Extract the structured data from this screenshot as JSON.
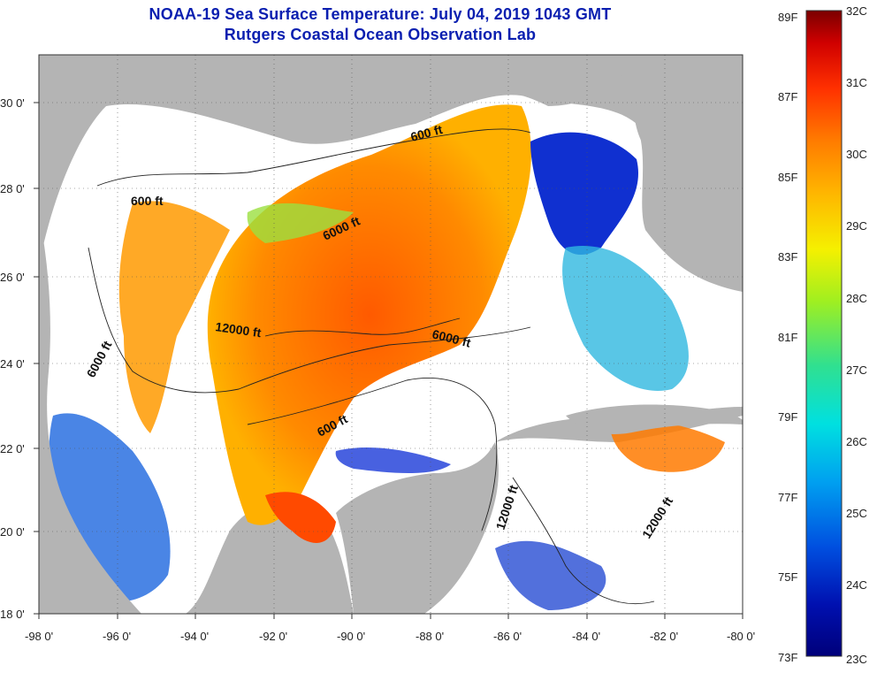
{
  "title": "NOAA-19 Sea Surface Temperature:  July 04, 2019 1043 GMT",
  "subtitle": "Rutgers Coastal Ocean Observation Lab",
  "map": {
    "lon_range": [
      -98,
      -80
    ],
    "lat_range": [
      18,
      31
    ],
    "lon_ticks": [
      "-98 0'",
      "-96 0'",
      "-94 0'",
      "-92 0'",
      "-90 0'",
      "-88 0'",
      "-86 0'",
      "-84 0'",
      "-82 0'",
      "-80 0'"
    ],
    "lat_ticks": [
      "30 0'",
      "28 0'",
      "26 0'",
      "24 0'",
      "22 0'",
      "20 0'",
      "18 0'"
    ],
    "land_color": "#b4b4b4",
    "cloud_color": "#ffffff",
    "contour_labels": [
      "600 ft",
      "600 ft",
      "6000 ft",
      "12000 ft",
      "6000 ft",
      "6000 ft",
      "600 ft",
      "12000 ft",
      "12000 ft"
    ]
  },
  "colorbar": {
    "celsius": [
      "32C",
      "31C",
      "30C",
      "29C",
      "28C",
      "27C",
      "26C",
      "25C",
      "24C",
      "23C"
    ],
    "fahrenheit": [
      "89F",
      "87F",
      "85F",
      "83F",
      "81F",
      "79F",
      "77F",
      "75F",
      "73F"
    ],
    "colors": [
      "#7a0000",
      "#d00000",
      "#ff3000",
      "#ff7a00",
      "#ffb400",
      "#f5f000",
      "#a0ef20",
      "#30e090",
      "#00e0e0",
      "#00a0f0",
      "#0050e0",
      "#0010b0",
      "#00007a"
    ]
  }
}
